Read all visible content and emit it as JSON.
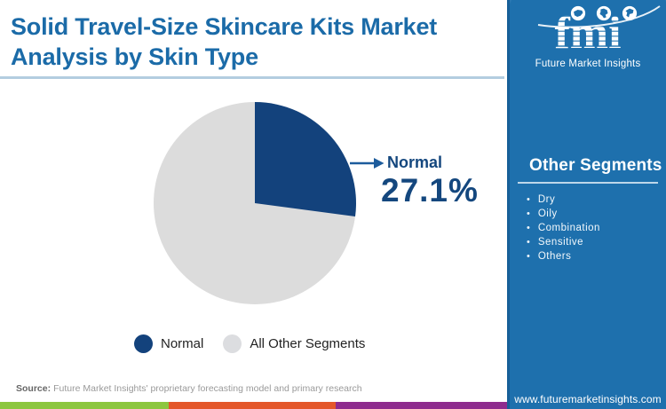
{
  "header": {
    "title_line1": "Solid Travel-Size Skincare Kits Market",
    "title_line2": "Analysis by Skin Type"
  },
  "logo": {
    "brand": "fmi",
    "tagline": "Future Market Insights",
    "icons": [
      "americas-map",
      "asia-map",
      "globe"
    ]
  },
  "chart_data": {
    "type": "pie",
    "title": "Solid Travel-Size Skincare Kits Market Analysis by Skin Type",
    "labels": [
      "Normal",
      "All Other Segments"
    ],
    "values": [
      27.1,
      72.9
    ],
    "colors": [
      "#13427c",
      "#dcdcdc"
    ],
    "start_angle_deg": 0,
    "direction": "clockwise",
    "annotation": {
      "label": "Normal",
      "value": "27.1%"
    },
    "legend_position": "bottom"
  },
  "callout": {
    "label": "Normal",
    "value": "27.1%"
  },
  "legend": [
    {
      "label": "Normal",
      "color": "#13427c"
    },
    {
      "label": "All Other Segments",
      "color": "#dcdde0"
    }
  ],
  "sidebar": {
    "heading": "Other Segments",
    "items": [
      "Dry",
      "Oily",
      "Combination",
      "Sensitive",
      "Others"
    ],
    "bullet": "•",
    "url": "www.futuremarketinsights.com"
  },
  "footer": {
    "source_label": "Source:",
    "source_text": "Future Market Insights' proprietary forecasting model and primary research"
  },
  "colors": {
    "title_blue": "#1b6ba8",
    "sidebar_blue": "#1e70ad",
    "wedge_blue": "#13427c",
    "pie_gray": "#dcdcdc",
    "callout_text": "#14477e",
    "arrow_blue": "#1d5c9c",
    "strip_green": "#8cc63f",
    "strip_orange": "#e4572a",
    "strip_purple": "#8e2b8e"
  }
}
